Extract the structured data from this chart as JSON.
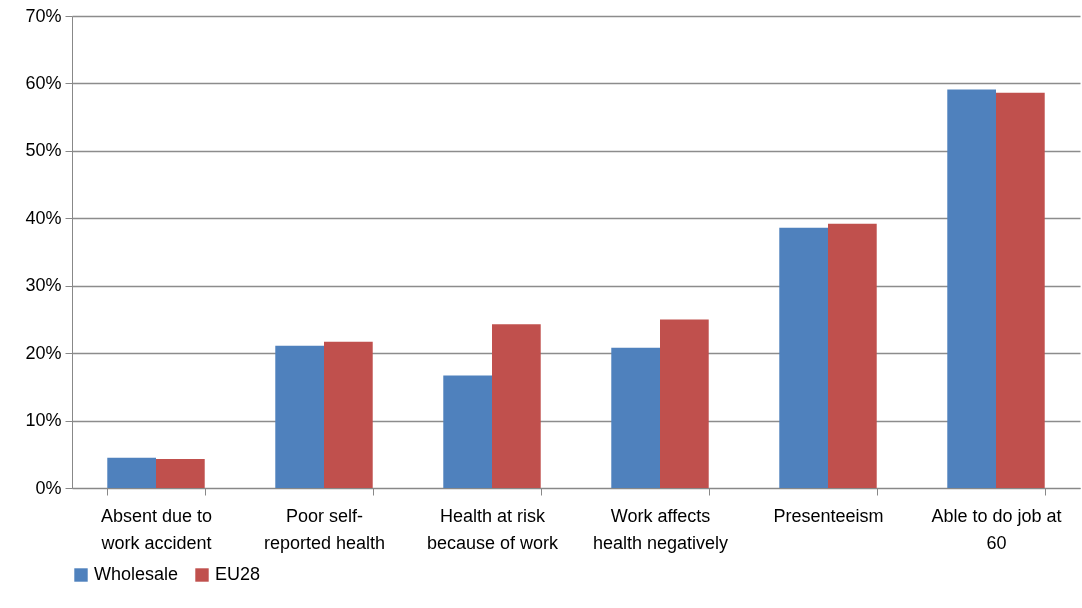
{
  "chart_data": {
    "type": "bar",
    "categories": [
      "Absent due to work accident",
      "Poor self-reported health",
      "Health at risk because of work",
      "Work affects health negatively",
      "Presenteeism",
      "Able to do job at 60"
    ],
    "series": [
      {
        "name": "Wholesale",
        "color": "#4f81bd",
        "values": [
          4.5,
          21.1,
          16.7,
          20.8,
          38.6,
          59.1
        ]
      },
      {
        "name": "EU28",
        "color": "#c0504d",
        "values": [
          4.3,
          21.7,
          24.3,
          25.0,
          39.2,
          58.6
        ]
      }
    ],
    "ylim": [
      0,
      70
    ],
    "yticks": [
      {
        "value": 0,
        "label": "0%"
      },
      {
        "value": 10,
        "label": "10%"
      },
      {
        "value": 20,
        "label": "20%"
      },
      {
        "value": 30,
        "label": "30%"
      },
      {
        "value": 40,
        "label": "40%"
      },
      {
        "value": 50,
        "label": "50%"
      },
      {
        "value": 60,
        "label": "60%"
      },
      {
        "value": 70,
        "label": "70%"
      }
    ],
    "grid": "y",
    "legend": "bottom"
  }
}
